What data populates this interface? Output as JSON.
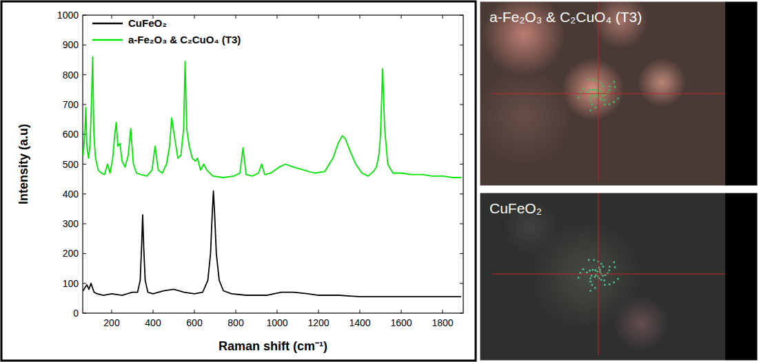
{
  "chart_data": {
    "type": "line",
    "x_label": "Raman shift (cm⁻¹)",
    "y_label": "Intensity (a.u)",
    "xlim": [
      60,
      1900
    ],
    "xticks": [
      200,
      400,
      600,
      800,
      1000,
      1200,
      1400,
      1600,
      1800
    ],
    "ylim": [
      0,
      1000
    ],
    "yticks": [
      0,
      100,
      200,
      300,
      400,
      500,
      600,
      700,
      800,
      900,
      1000
    ],
    "grid": false,
    "legend": "upper left",
    "series": [
      {
        "name": "CuFeO₂",
        "color": "#000000",
        "x": [
          62,
          70,
          80,
          90,
          100,
          115,
          130,
          160,
          200,
          250,
          300,
          325,
          338,
          345,
          350,
          355,
          362,
          375,
          400,
          450,
          500,
          550,
          600,
          640,
          665,
          678,
          686,
          692,
          698,
          706,
          720,
          740,
          780,
          850,
          950,
          1020,
          1080,
          1150,
          1200,
          1300,
          1400,
          1500,
          1600,
          1700,
          1800,
          1890
        ],
        "values": [
          75,
          85,
          95,
          80,
          100,
          70,
          65,
          60,
          65,
          60,
          70,
          70,
          110,
          230,
          330,
          220,
          110,
          70,
          65,
          75,
          80,
          70,
          65,
          70,
          110,
          200,
          330,
          410,
          330,
          200,
          110,
          75,
          65,
          60,
          60,
          70,
          70,
          65,
          60,
          60,
          55,
          55,
          55,
          55,
          55,
          55
        ]
      },
      {
        "name": "a-Fe₂O₃ & C₂CuO₄ (T3)",
        "color": "#00e600",
        "x": [
          62,
          70,
          75,
          80,
          88,
          95,
          102,
          108,
          114,
          122,
          135,
          150,
          165,
          180,
          192,
          205,
          215,
          222,
          230,
          240,
          250,
          265,
          280,
          292,
          305,
          320,
          340,
          370,
          395,
          410,
          425,
          445,
          465,
          480,
          490,
          502,
          520,
          535,
          548,
          555,
          563,
          575,
          590,
          605,
          615,
          630,
          645,
          660,
          690,
          740,
          790,
          820,
          835,
          850,
          880,
          910,
          925,
          940,
          970,
          1010,
          1040,
          1080,
          1130,
          1180,
          1230,
          1270,
          1295,
          1315,
          1330,
          1355,
          1380,
          1410,
          1440,
          1465,
          1480,
          1492,
          1500,
          1510,
          1520,
          1535,
          1560,
          1600,
          1650,
          1700,
          1750,
          1800,
          1850,
          1890
        ],
        "values": [
          530,
          600,
          690,
          560,
          520,
          560,
          700,
          860,
          600,
          520,
          480,
          470,
          465,
          500,
          470,
          520,
          600,
          640,
          560,
          570,
          510,
          490,
          530,
          620,
          500,
          470,
          465,
          460,
          480,
          560,
          480,
          470,
          500,
          560,
          655,
          600,
          520,
          530,
          620,
          845,
          620,
          560,
          520,
          510,
          520,
          480,
          500,
          480,
          460,
          455,
          460,
          470,
          555,
          465,
          460,
          470,
          500,
          465,
          470,
          490,
          500,
          490,
          480,
          470,
          475,
          520,
          570,
          595,
          585,
          540,
          500,
          470,
          460,
          475,
          490,
          530,
          600,
          820,
          620,
          500,
          470,
          470,
          465,
          465,
          460,
          460,
          455,
          455
        ]
      }
    ]
  },
  "images": [
    {
      "label": "a-Fe₂O₃ & C₂CuO₄ (T3)"
    },
    {
      "label": "CuFeO₂"
    }
  ]
}
